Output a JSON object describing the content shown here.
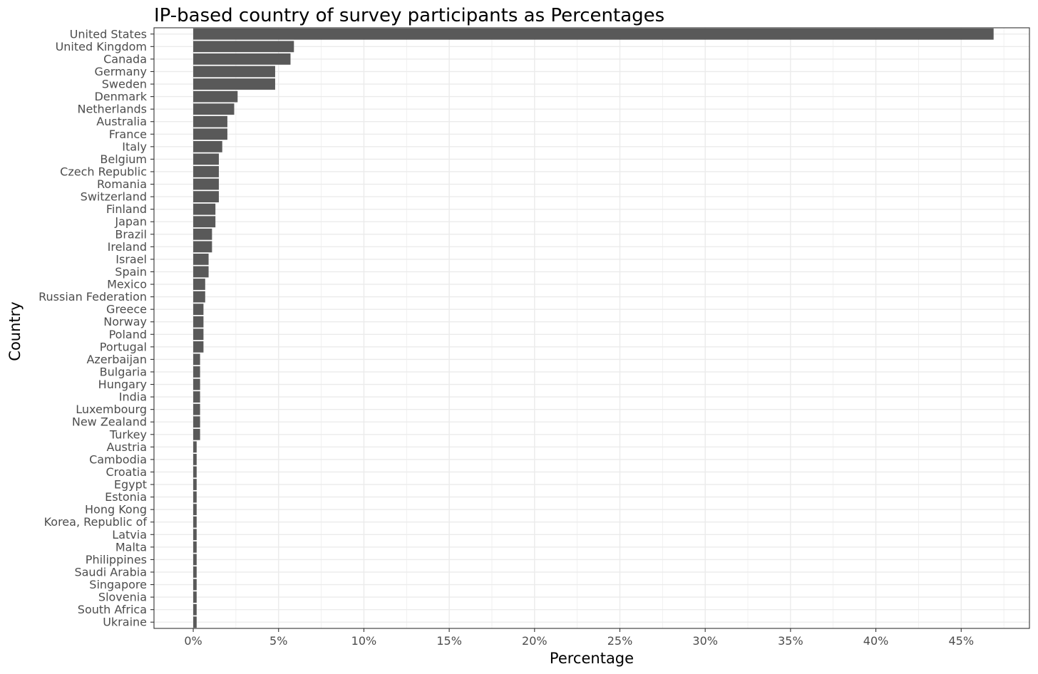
{
  "chart_data": {
    "type": "bar",
    "orientation": "horizontal",
    "title": "IP-based country of survey participants as Percentages",
    "xlabel": "Percentage",
    "ylabel": "Country",
    "xlim": [
      -2.3,
      49.0
    ],
    "x_ticks": [
      0,
      5,
      10,
      15,
      20,
      25,
      30,
      35,
      40,
      45
    ],
    "x_tick_labels": [
      "0%",
      "5%",
      "10%",
      "15%",
      "20%",
      "25%",
      "30%",
      "35%",
      "40%",
      "45%"
    ],
    "grid": true,
    "bar_color": "#595959",
    "categories": [
      "United States",
      "United Kingdom",
      "Canada",
      "Germany",
      "Sweden",
      "Denmark",
      "Netherlands",
      "Australia",
      "France",
      "Italy",
      "Belgium",
      "Czech Republic",
      "Romania",
      "Switzerland",
      "Finland",
      "Japan",
      "Brazil",
      "Ireland",
      "Israel",
      "Spain",
      "Mexico",
      "Russian Federation",
      "Greece",
      "Norway",
      "Poland",
      "Portugal",
      "Azerbaijan",
      "Bulgaria",
      "Hungary",
      "India",
      "Luxembourg",
      "New Zealand",
      "Turkey",
      "Austria",
      "Cambodia",
      "Croatia",
      "Egypt",
      "Estonia",
      "Hong Kong",
      "Korea, Republic of",
      "Latvia",
      "Malta",
      "Philippines",
      "Saudi Arabia",
      "Singapore",
      "Slovenia",
      "South Africa",
      "Ukraine"
    ],
    "values": [
      46.9,
      5.9,
      5.7,
      4.8,
      4.8,
      2.6,
      2.4,
      2.0,
      2.0,
      1.7,
      1.5,
      1.5,
      1.5,
      1.5,
      1.3,
      1.3,
      1.1,
      1.1,
      0.9,
      0.9,
      0.7,
      0.7,
      0.6,
      0.6,
      0.6,
      0.6,
      0.4,
      0.4,
      0.4,
      0.4,
      0.4,
      0.4,
      0.4,
      0.2,
      0.2,
      0.2,
      0.2,
      0.2,
      0.2,
      0.2,
      0.2,
      0.2,
      0.2,
      0.2,
      0.2,
      0.2,
      0.2,
      0.2
    ]
  }
}
